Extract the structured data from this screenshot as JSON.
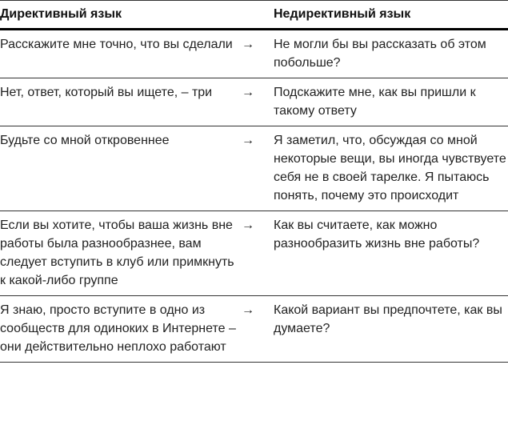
{
  "headers": {
    "directive": "Директивный язык",
    "nondirective": "Недирективный язык"
  },
  "arrow": "→",
  "rows": [
    {
      "directive": "Расскажите мне точно, что вы сделали",
      "nondirective": "Не могли бы вы рассказать об этом побольше?"
    },
    {
      "directive": "Нет, ответ, который вы ищете, – три",
      "nondirective": "Подскажите мне, как вы пришли к такому ответу"
    },
    {
      "directive": "Будьте со мной откровеннее",
      "nondirective": "Я заметил, что, обсуждая со мной некоторые вещи, вы иногда чувствуете себя не в своей тарелке. Я пытаюсь понять, почему это происходит"
    },
    {
      "directive": "Если вы хотите, чтобы ваша жизнь вне работы была разнообразнее, вам следует вступить в клуб или примкнуть к какой-либо группе",
      "nondirective": "Как вы считаете, как можно разнообразить жизнь вне работы?"
    },
    {
      "directive": "Я знаю, просто вступите в одно из сообществ для одиноких в Интернете – они действительно неплохо работают",
      "nondirective": "Какой вариант вы предпочтете, как вы думаете?"
    }
  ]
}
